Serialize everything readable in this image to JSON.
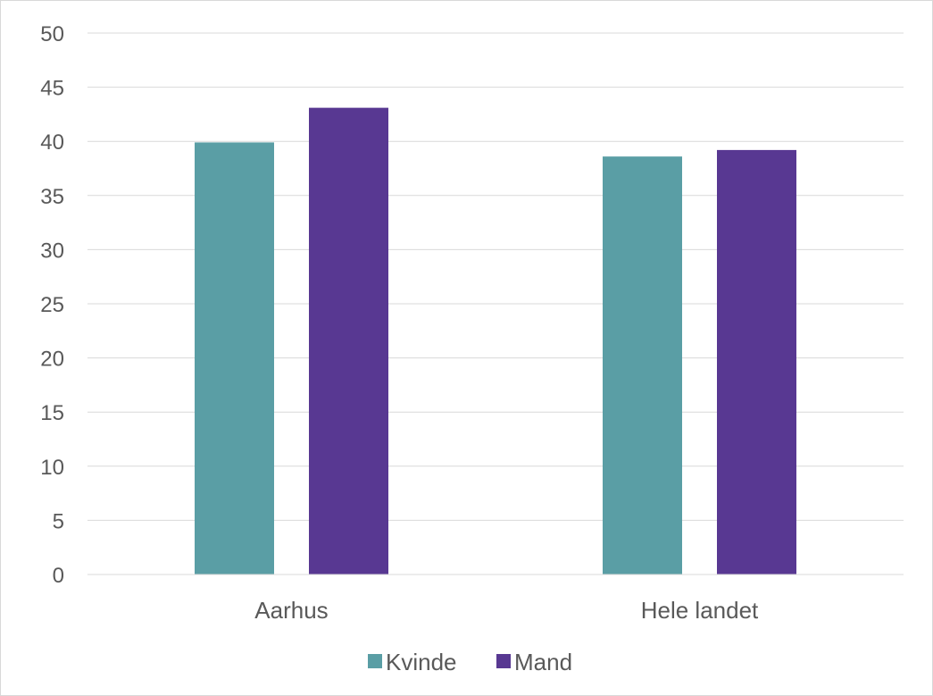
{
  "chart_data": {
    "type": "bar",
    "categories": [
      "Aarhus",
      "Hele landet"
    ],
    "series": [
      {
        "name": "Kvinde",
        "color": "#5a9ea5",
        "values": [
          39.9,
          38.6
        ]
      },
      {
        "name": "Mand",
        "color": "#583892",
        "values": [
          43.1,
          39.2
        ]
      }
    ],
    "ylim": [
      0,
      50
    ],
    "yticks": [
      0,
      5,
      10,
      15,
      20,
      25,
      30,
      35,
      40,
      45,
      50
    ],
    "grid": true,
    "legend_position": "bottom"
  }
}
